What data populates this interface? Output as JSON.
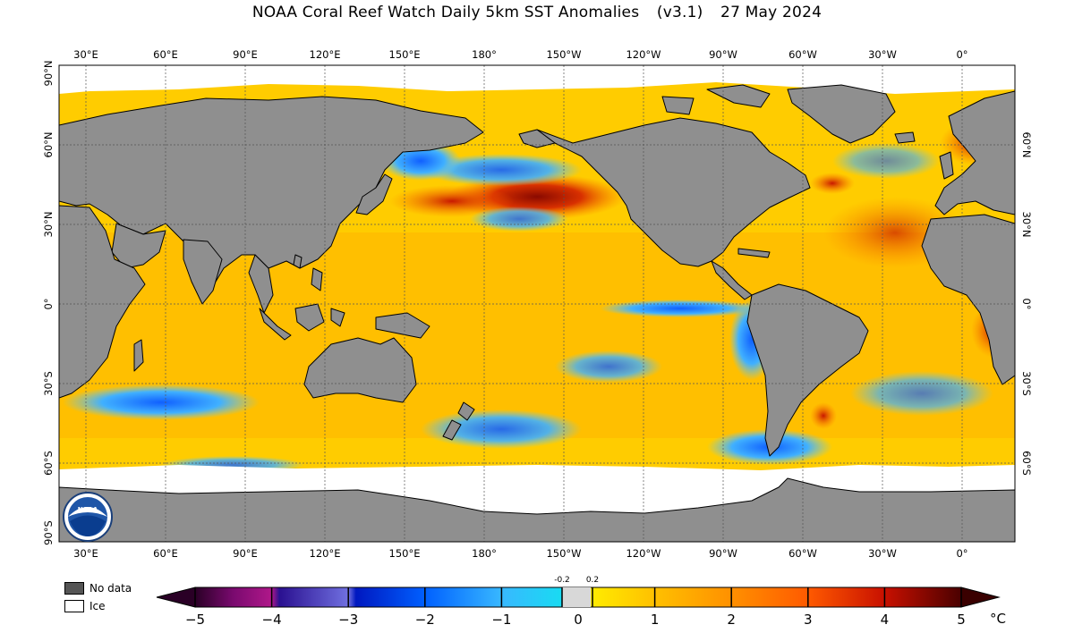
{
  "title": {
    "main": "NOAA Coral Reef Watch Daily 5km SST Anomalies",
    "version": "(v3.1)",
    "date": "27 May 2024"
  },
  "longitude_labels": [
    "30°E",
    "60°E",
    "90°E",
    "120°E",
    "150°E",
    "180°",
    "150°W",
    "120°W",
    "90°W",
    "60°W",
    "30°W",
    "0°"
  ],
  "latitude_labels_left": [
    "90°N",
    "60°N",
    "30°N",
    "0°",
    "30°S",
    "60°S",
    "90°S"
  ],
  "latitude_labels_right": [
    "60°N",
    "30°N",
    "0°",
    "30°S",
    "60°S"
  ],
  "legend": {
    "no_data": "No data",
    "ice": "Ice",
    "no_data_color": "#555555",
    "ice_color": "#ffffff",
    "land_color": "#8f8f8f"
  },
  "colorbar": {
    "ticks": [
      "−5",
      "−4",
      "−3",
      "−2",
      "−1",
      "0",
      "1",
      "2",
      "3",
      "4",
      "5"
    ],
    "small_ticks": [
      "-0.2",
      "0.2"
    ],
    "unit": "°C",
    "colors": [
      "#3a0033",
      "#7a0a6f",
      "#3a0f8f",
      "#0a1fd0",
      "#1f7fff",
      "#14d0f0",
      "#d8d8d8",
      "#ffe000",
      "#ffb000",
      "#ff7a00",
      "#d42000",
      "#6a0000"
    ]
  },
  "logo": {
    "text": "NOAA"
  }
}
